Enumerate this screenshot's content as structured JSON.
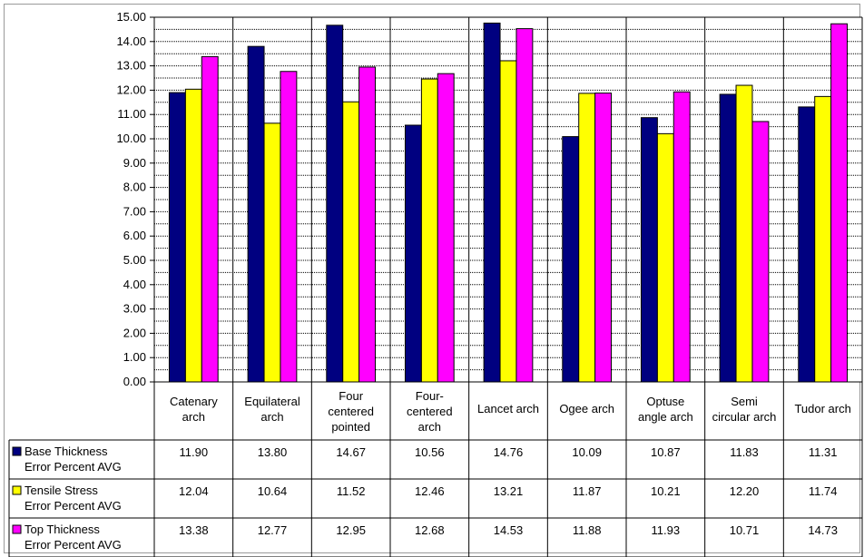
{
  "chart_data": {
    "type": "bar",
    "categories": [
      [
        "Catenary",
        "arch"
      ],
      [
        "Equilateral",
        "arch"
      ],
      [
        "Four",
        "centered",
        "pointed"
      ],
      [
        "Four-",
        "centered",
        "arch"
      ],
      [
        "Lancet arch"
      ],
      [
        "Ogee arch"
      ],
      [
        "Optuse",
        "angle arch"
      ],
      [
        "Semi",
        "circular arch"
      ],
      [
        "Tudor arch"
      ]
    ],
    "series": [
      {
        "name": [
          "Base Thickness",
          "Error Percent AVG"
        ],
        "color": "#000080",
        "values": [
          11.9,
          13.8,
          14.67,
          10.56,
          14.76,
          10.09,
          10.87,
          11.83,
          11.31
        ]
      },
      {
        "name": [
          "Tensile Stress",
          "Error Percent AVG"
        ],
        "color": "#FFFF00",
        "values": [
          12.04,
          10.64,
          11.52,
          12.46,
          13.21,
          11.87,
          10.21,
          12.2,
          11.74
        ]
      },
      {
        "name": [
          "Top Thickness",
          "Error Percent AVG"
        ],
        "color": "#FF00FF",
        "values": [
          13.38,
          12.77,
          12.95,
          12.68,
          14.53,
          11.88,
          11.93,
          10.71,
          14.73
        ]
      }
    ],
    "ylim": [
      0,
      15
    ],
    "ytick_step": 0.5,
    "ytick_label_decimals": 2,
    "value_decimals": 2,
    "grid": "dotted horizontal",
    "legend": "data table below chart"
  }
}
